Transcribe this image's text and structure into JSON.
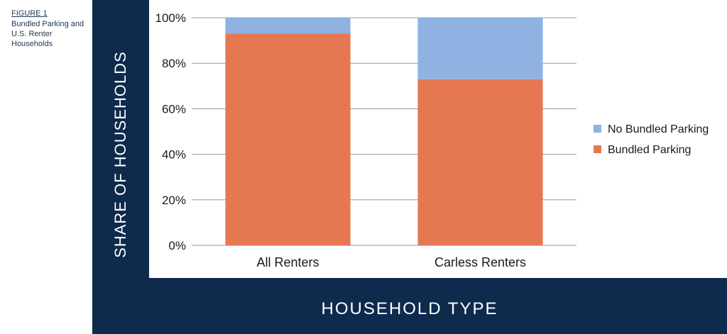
{
  "caption": {
    "figure": "FIGURE 1",
    "title": "Bundled Parking and U.S. Renter Households"
  },
  "chart_data": {
    "type": "bar",
    "stacked": true,
    "categories": [
      "All Renters",
      "Carless Renters"
    ],
    "series": [
      {
        "name": "Bundled Parking",
        "values": [
          93,
          73
        ],
        "color": "#e57852"
      },
      {
        "name": "No Bundled Parking",
        "values": [
          7,
          27
        ],
        "color": "#8fb2e2"
      }
    ],
    "ylabel": "SHARE OF HOUSEHOLDS",
    "xlabel": "HOUSEHOLD TYPE",
    "ylim": [
      0,
      100
    ],
    "yticks": [
      "0%",
      "20%",
      "40%",
      "60%",
      "80%",
      "100%"
    ],
    "grid": true,
    "legend": "right"
  }
}
